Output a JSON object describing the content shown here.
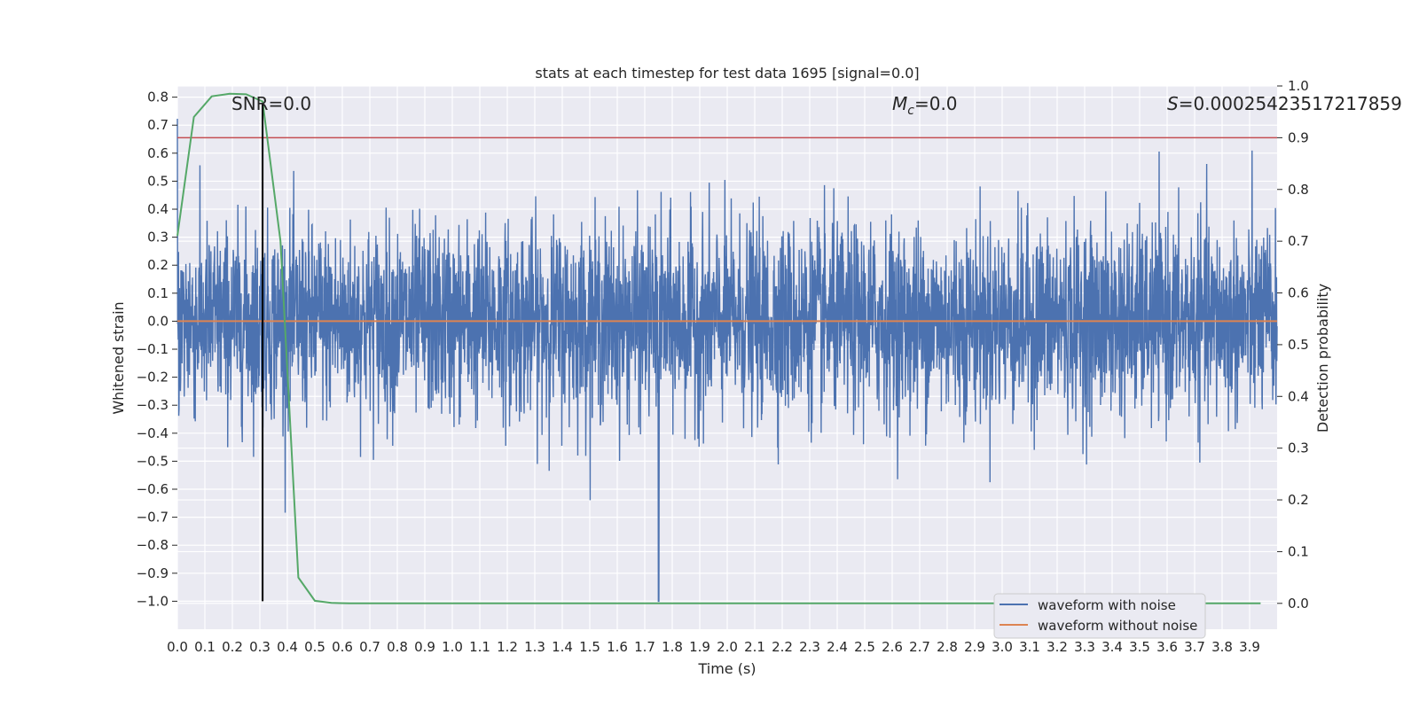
{
  "chart_data": {
    "type": "line",
    "title": "stats at each timestep for test data 1695 [signal=0.0]",
    "xlabel": "Time (s)",
    "ylabel_left": "Whitened strain",
    "ylabel_right": "Detection probability",
    "xlim": [
      0.0,
      4.0
    ],
    "ylim_left": [
      -1.1,
      0.84
    ],
    "ylim_right": [
      -0.05,
      1.0
    ],
    "x_ticks": [
      "0.0",
      "0.1",
      "0.2",
      "0.3",
      "0.4",
      "0.5",
      "0.6",
      "0.7",
      "0.8",
      "0.9",
      "1.0",
      "1.1",
      "1.2",
      "1.3",
      "1.4",
      "1.5",
      "1.6",
      "1.7",
      "1.8",
      "1.9",
      "2.0",
      "2.1",
      "2.2",
      "2.3",
      "2.4",
      "2.5",
      "2.6",
      "2.7",
      "2.8",
      "2.9",
      "3.0",
      "3.1",
      "3.2",
      "3.3",
      "3.4",
      "3.5",
      "3.6",
      "3.7",
      "3.8",
      "3.9"
    ],
    "y_ticks_left": [
      "0.8",
      "0.7",
      "0.6",
      "0.5",
      "0.4",
      "0.3",
      "0.2",
      "0.1",
      "0.0",
      "−0.1",
      "−0.2",
      "−0.3",
      "−0.4",
      "−0.5",
      "−0.6",
      "−0.7",
      "−0.8",
      "−0.9",
      "−1.0"
    ],
    "y_ticks_right": [
      "1.0",
      "0.9",
      "0.8",
      "0.7",
      "0.6",
      "0.5",
      "0.4",
      "0.3",
      "0.2",
      "0.1",
      "0.0"
    ],
    "grid": true,
    "legend": "lower-right",
    "annotations": {
      "snr": "SNR=0.0",
      "mc_symbol": "M",
      "mc_sub": "c",
      "mc_value": "=0.0",
      "s_symbol": "S",
      "s_value": "=0.00025423517217859"
    },
    "series": [
      {
        "name": "waveform with noise",
        "color": "#4c72b0",
        "axis": "left",
        "description_of_values": "whitened noise, amplitude roughly within -0.75..0.75, sampled densely over 0..4 s",
        "amplitude_range": [
          -0.75,
          0.75
        ],
        "notable_spike": {
          "x": 1.75,
          "y": -1.0
        }
      },
      {
        "name": "waveform without noise",
        "color": "#dd8452",
        "axis": "left",
        "x": [
          0.0,
          4.0
        ],
        "y": [
          0.0,
          0.0
        ]
      },
      {
        "color": "#55a868",
        "axis": "right",
        "x": [
          0.0,
          0.06,
          0.125,
          0.19,
          0.25,
          0.31,
          0.375,
          0.44,
          0.5,
          0.56,
          0.625,
          1.0,
          2.0,
          3.0,
          3.94
        ],
        "y": [
          0.71,
          0.94,
          0.98,
          0.985,
          0.984,
          0.97,
          0.7,
          0.05,
          0.005,
          0.001,
          0.0,
          0.0,
          0.0,
          0.0,
          0.0
        ]
      }
    ],
    "hlines": [
      {
        "axis": "right",
        "y": 0.9,
        "color": "#c44e52"
      }
    ],
    "vlines": [
      {
        "x": 0.31,
        "color": "#000000",
        "y_from": -1.0,
        "y_to": 0.78
      }
    ]
  }
}
